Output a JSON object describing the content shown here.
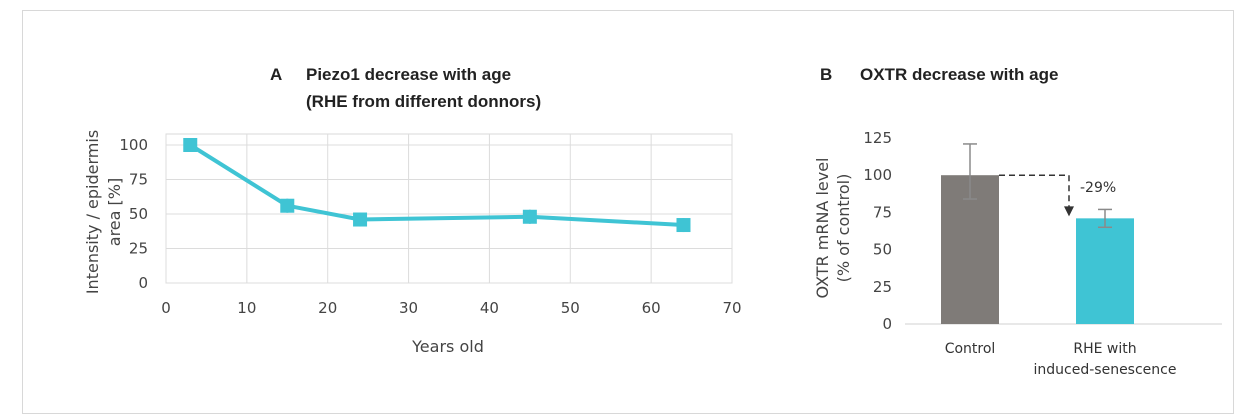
{
  "chart_data": [
    {
      "type": "line",
      "panel_letter": "A",
      "title_line1": "Piezo1 decrease with age",
      "title_line2": "(RHE from different donnors)",
      "xlabel": "Years old",
      "ylabel_line1": "Intensity / epidermis",
      "ylabel_line2": "area [%]",
      "xlim": [
        0,
        70
      ],
      "ylim": [
        0,
        100
      ],
      "xticks": [
        "0",
        "10",
        "20",
        "30",
        "40",
        "50",
        "60",
        "70"
      ],
      "yticks": [
        "0",
        "25",
        "50",
        "75",
        "100"
      ],
      "grid": true,
      "series": [
        {
          "x": [
            3,
            15,
            24,
            45,
            64
          ],
          "y": [
            100,
            56,
            46,
            48,
            42
          ],
          "color": "#3fc4d4"
        }
      ]
    },
    {
      "type": "bar",
      "panel_letter": "B",
      "title": "OXTR decrease with age",
      "ylabel_line1": "OXTR mRNA level",
      "ylabel_line2": "(% of control)",
      "ylim": [
        0,
        125
      ],
      "yticks": [
        "0",
        "25",
        "50",
        "75",
        "100",
        "125"
      ],
      "grid": false,
      "categories": [
        {
          "line1": "Control",
          "line2": ""
        },
        {
          "line1": "RHE with",
          "line2": "induced-senescence"
        }
      ],
      "values": [
        100,
        71
      ],
      "error_low": [
        84,
        65
      ],
      "error_high": [
        121,
        77
      ],
      "colors": [
        "#7f7b78",
        "#3fc4d4"
      ],
      "annotation": "-29%"
    }
  ]
}
